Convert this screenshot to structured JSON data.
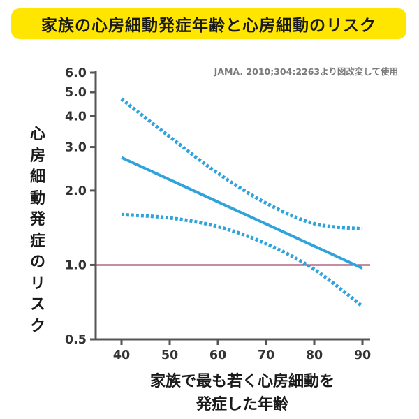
{
  "title": "家族の心房細動発症年齢と心房細動のリスク",
  "source_note": "JAMA. 2010;304:2263より図改変して使用",
  "chart_data": {
    "type": "line",
    "ylabel": "心房細動発症のリスク",
    "xlabel_lines": [
      "家族で最も若く心房細動を",
      "発症した年齢"
    ],
    "x_scale": "linear",
    "y_scale": "log",
    "xlim": [
      35,
      90
    ],
    "ylim": [
      0.5,
      6.0
    ],
    "x_ticks": [
      40,
      50,
      60,
      70,
      80,
      90
    ],
    "y_ticks": [
      0.5,
      1.0,
      2.0,
      3.0,
      4.0,
      5.0,
      6.0
    ],
    "y_tick_labels": [
      "0.5",
      "1.0",
      "2.0",
      "3.0",
      "4.0",
      "5.0",
      "6.0"
    ],
    "reference_line": {
      "y": 1.0,
      "color": "#8b1a4a"
    },
    "series": [
      {
        "style": "solid",
        "color": "#2fa3dc",
        "x": [
          40,
          90
        ],
        "y": [
          2.72,
          0.97
        ]
      },
      {
        "style": "dotted",
        "color": "#2fa3dc",
        "x": [
          40,
          50,
          60,
          70,
          80,
          90
        ],
        "y": [
          4.7,
          3.3,
          2.35,
          1.78,
          1.47,
          1.4
        ]
      },
      {
        "style": "dotted",
        "color": "#2fa3dc",
        "x": [
          40,
          50,
          60,
          70,
          80,
          90
        ],
        "y": [
          1.6,
          1.55,
          1.43,
          1.22,
          0.96,
          0.68
        ]
      }
    ]
  }
}
